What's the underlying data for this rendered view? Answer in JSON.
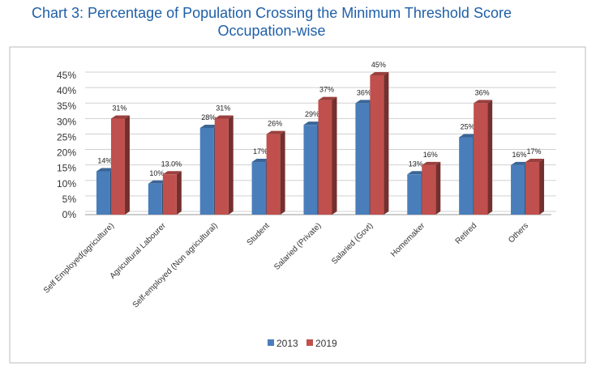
{
  "chart_data": {
    "type": "bar",
    "title": [
      "Chart 3: Percentage of Population Crossing the Minimum Threshold Score",
      "Occupation-wise"
    ],
    "categories": [
      "Self Employed(agriculture)",
      "Agricultural Labourer",
      "Self-employed (Non agricultural)",
      "Student",
      "Salaried (Private)",
      "Salaried (Govt)",
      "Homemaker",
      "Retired",
      "Others"
    ],
    "series": [
      {
        "name": "2013",
        "color": "#4a7ebb",
        "values": [
          14,
          10,
          28,
          17,
          29,
          36,
          13,
          25,
          16
        ],
        "value_labels": [
          "14%",
          "10%",
          "28%",
          "17%",
          "29%",
          "36%",
          "13%",
          "25%",
          "16%"
        ]
      },
      {
        "name": "2019",
        "color": "#c0504d",
        "values": [
          31,
          13.0,
          31,
          26,
          37,
          45,
          16,
          36,
          17
        ],
        "value_labels": [
          "31%",
          "13.0%",
          "31%",
          "26%",
          "37%",
          "45%",
          "16%",
          "36%",
          "17%"
        ]
      }
    ],
    "ylim": [
      0,
      45
    ],
    "yticks": [
      {
        "value": 0,
        "label": "0%"
      },
      {
        "value": 5,
        "label": "5%"
      },
      {
        "value": 10,
        "label": "10%"
      },
      {
        "value": 15,
        "label": "15%"
      },
      {
        "value": 20,
        "label": "20%"
      },
      {
        "value": 25,
        "label": "25%"
      },
      {
        "value": 30,
        "label": "30%"
      },
      {
        "value": 35,
        "label": "35%"
      },
      {
        "value": 40,
        "label": "40%"
      },
      {
        "value": 45,
        "label": "45%"
      }
    ],
    "grid": true,
    "legend": "bottom"
  }
}
